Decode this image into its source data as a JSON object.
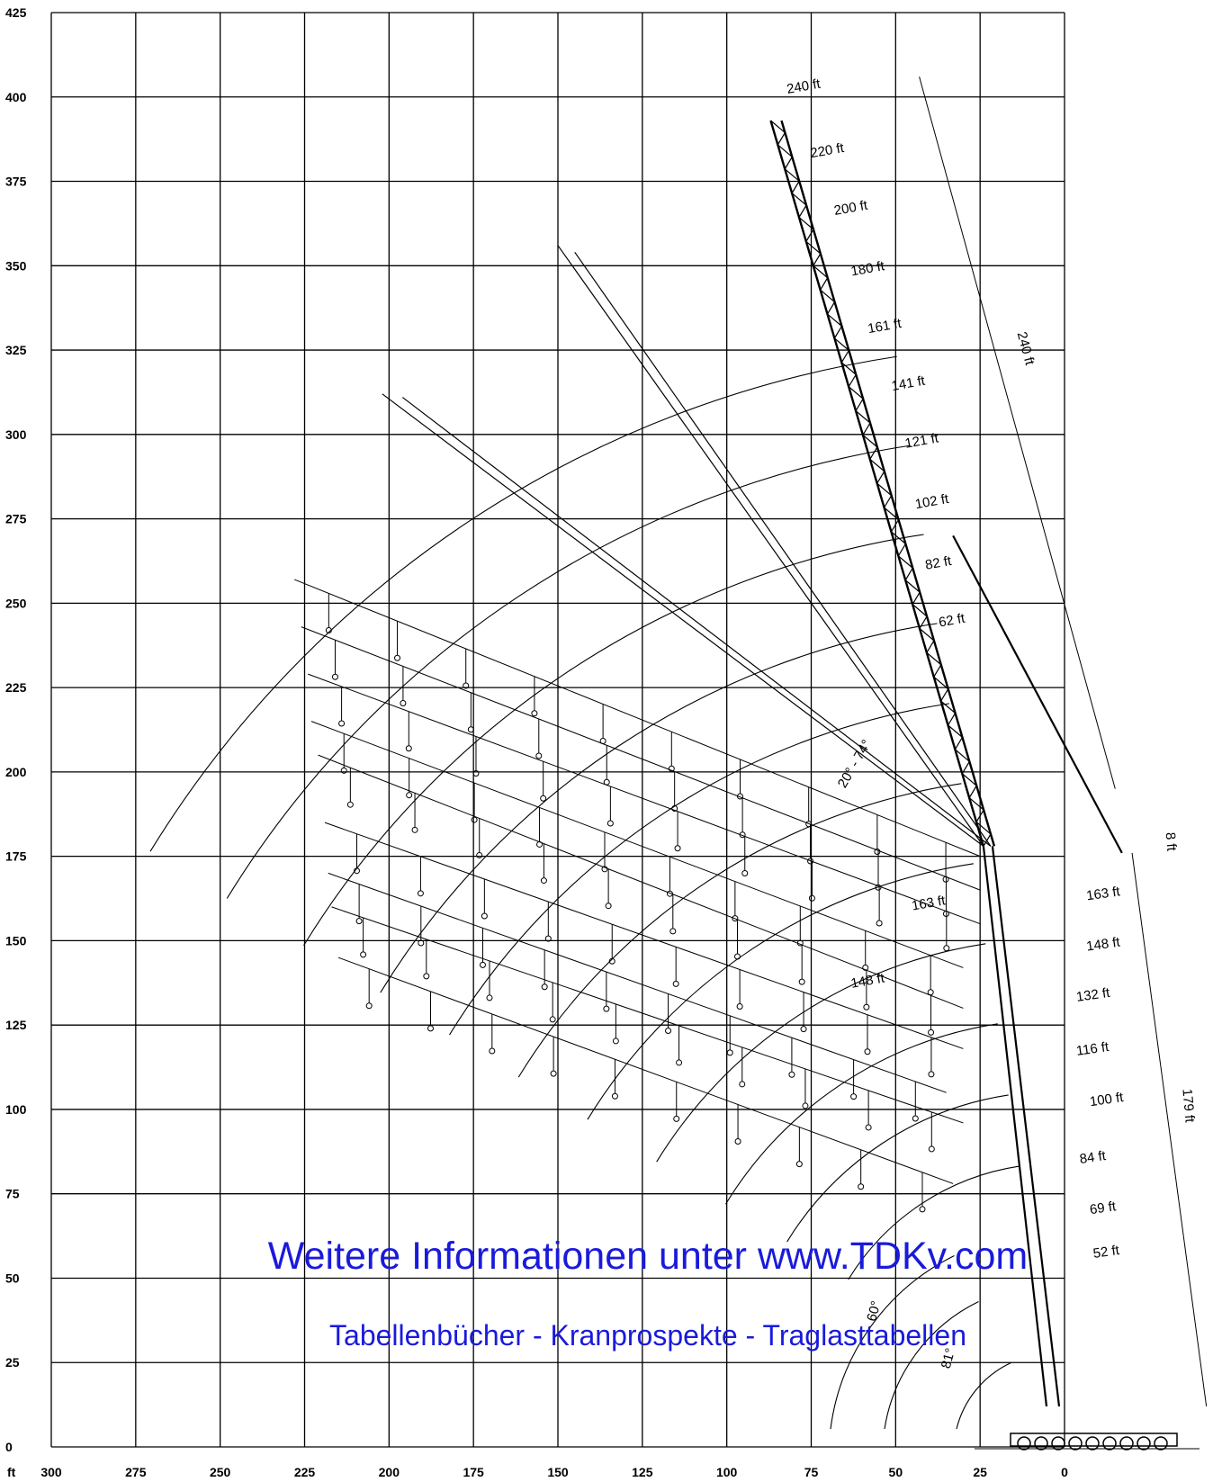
{
  "axes": {
    "unit": "ft",
    "y_ticks": [
      "425",
      "400",
      "375",
      "350",
      "325",
      "300",
      "275",
      "250",
      "225",
      "200",
      "175",
      "150",
      "125",
      "100",
      "75",
      "50",
      "25",
      "0"
    ],
    "x_ticks": [
      "300",
      "275",
      "250",
      "225",
      "200",
      "175",
      "150",
      "125",
      "100",
      "75",
      "50",
      "25",
      "0"
    ]
  },
  "main_boom_labels": [
    "52 ft",
    "69 ft",
    "84 ft",
    "100 ft",
    "116 ft",
    "132 ft",
    "148 ft",
    "163 ft"
  ],
  "jib_labels": [
    "62 ft",
    "82 ft",
    "102 ft",
    "121 ft",
    "141 ft",
    "161 ft",
    "180 ft",
    "200 ft",
    "220 ft",
    "240 ft"
  ],
  "other_labels": {
    "jib_163": "163 ft",
    "jib_148": "148 ft",
    "offset_angle": "20° - 74°",
    "angle_60": "60°",
    "angle_81": "81°",
    "dim_240": "240 ft",
    "dim_179": "179 ft",
    "dim_8": "8 ft"
  },
  "watermark": {
    "line1": "Weitere Informationen unter www.TDKv.com",
    "line2": "Tabellenbücher - Kranprospekte - Traglasttabellen"
  }
}
